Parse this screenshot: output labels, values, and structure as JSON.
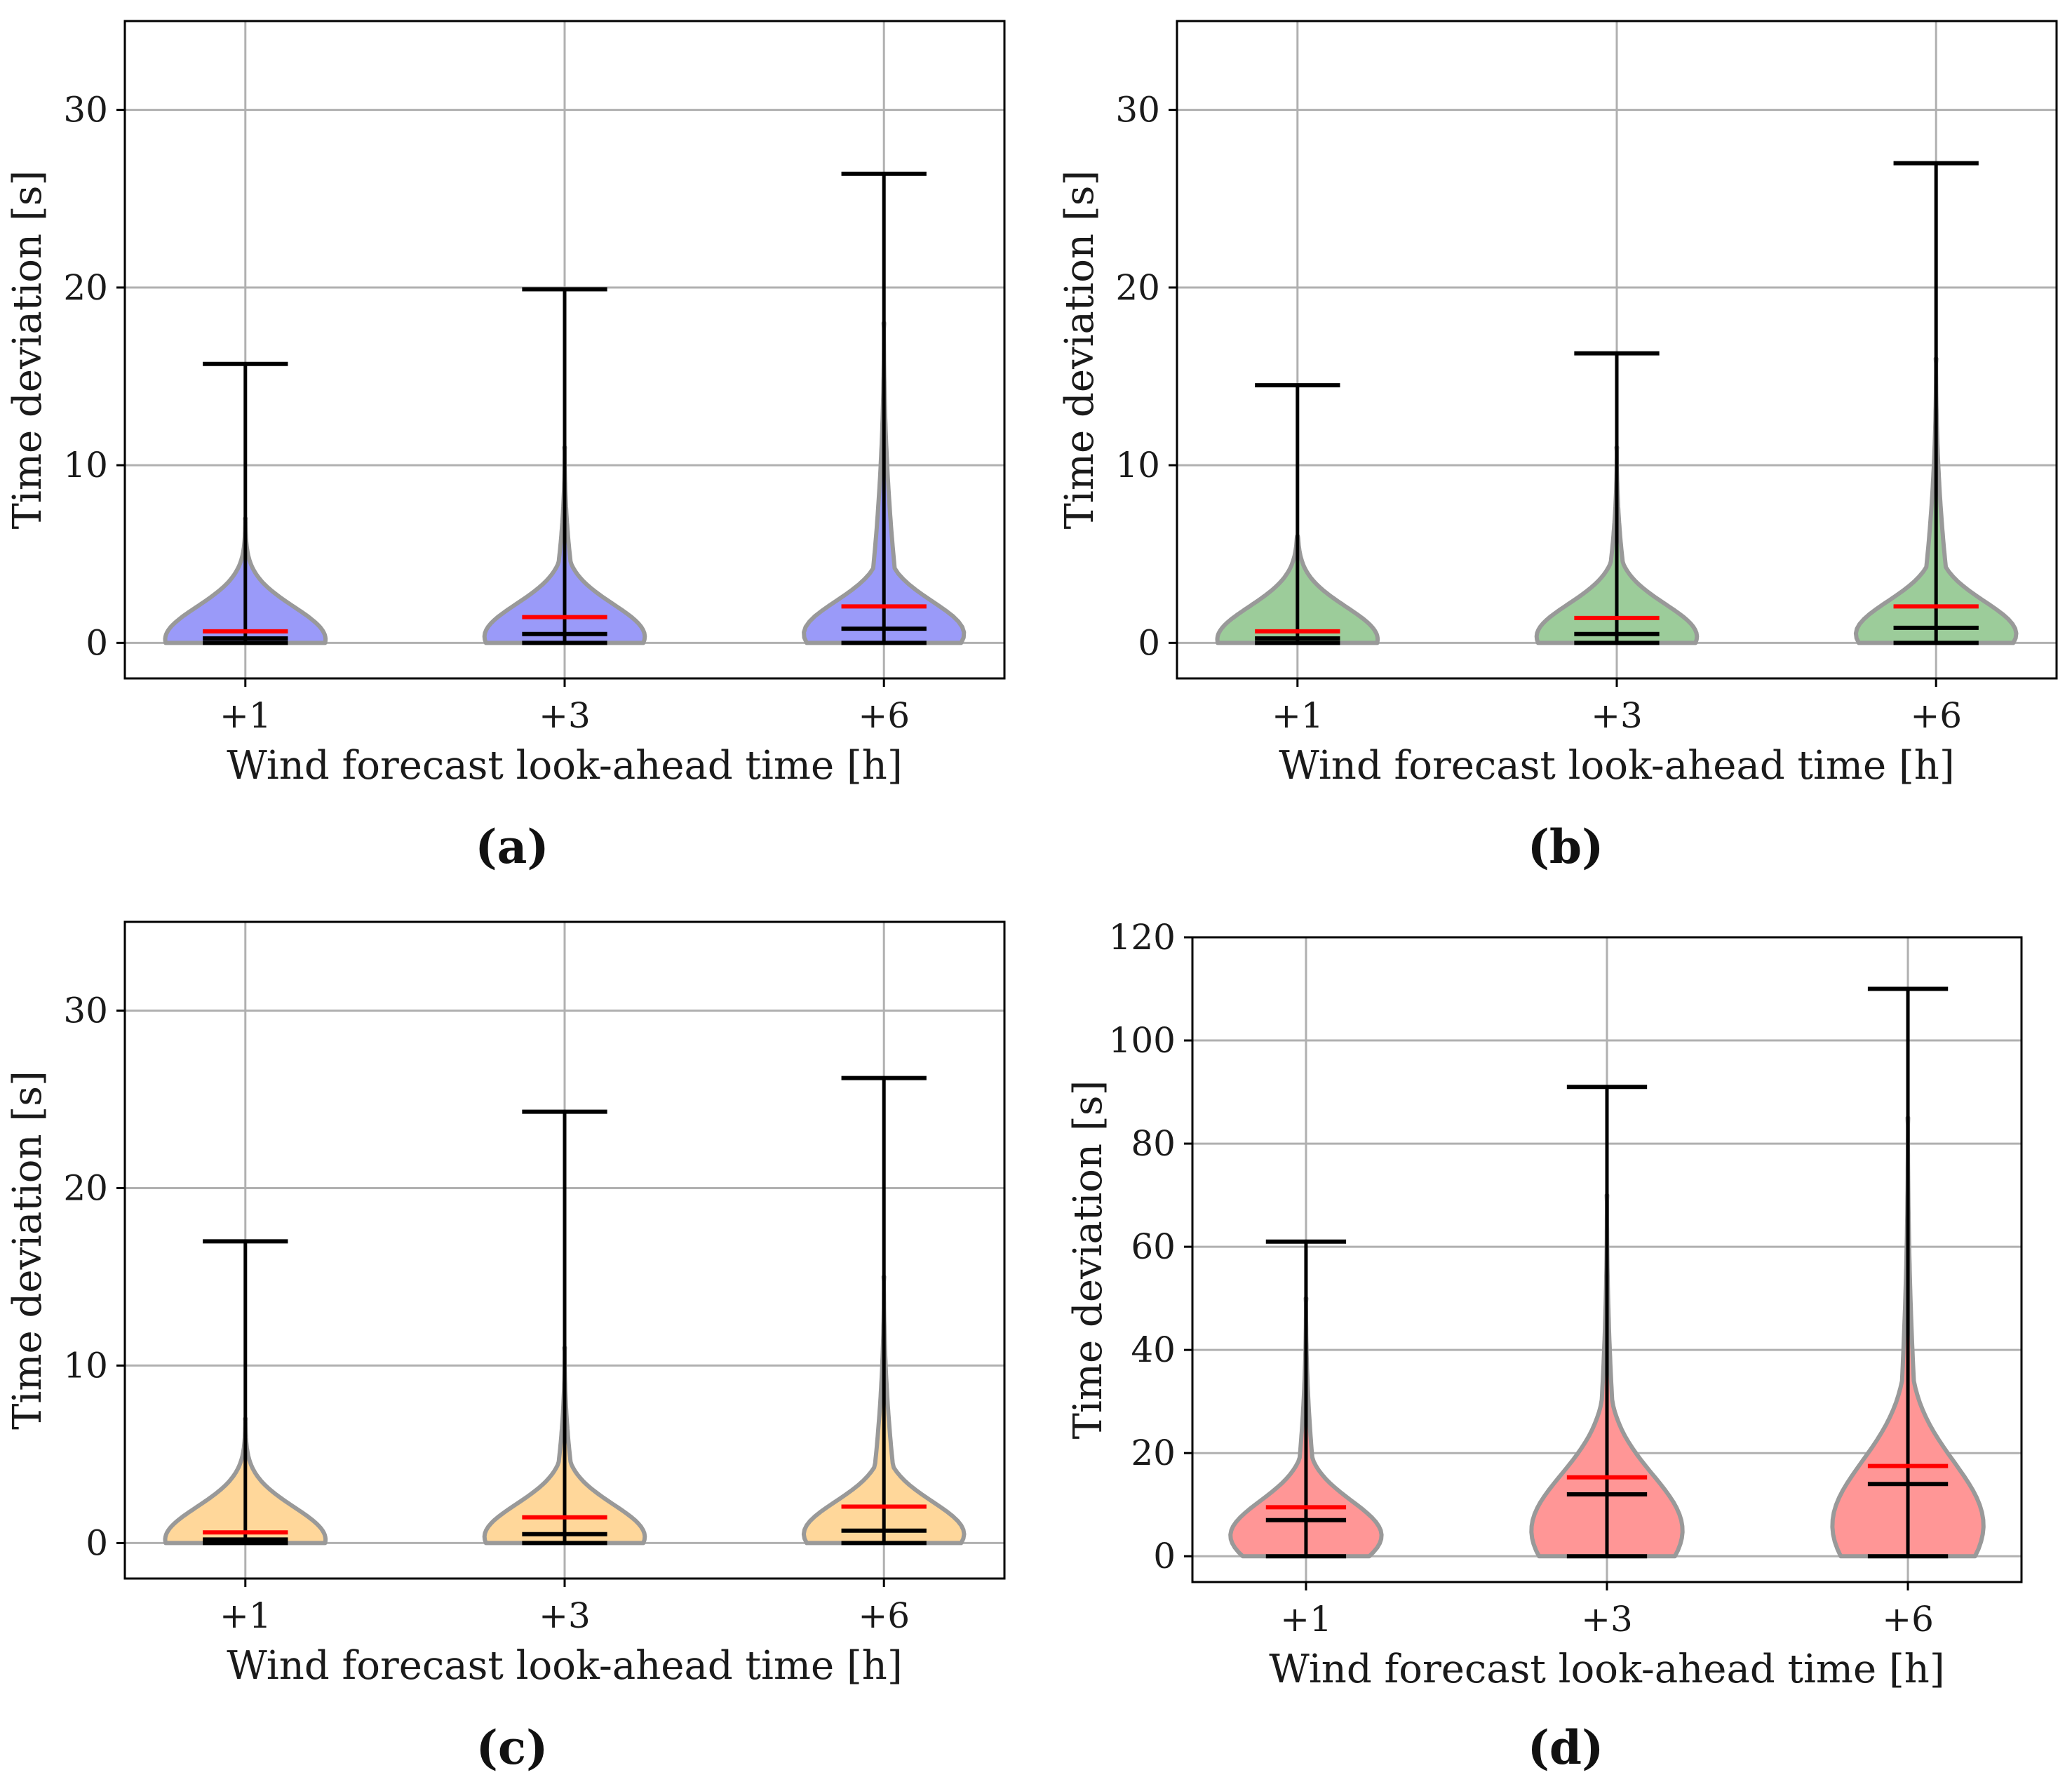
{
  "colors": {
    "grid": "#b0b0b0",
    "violin_outline": "#999999",
    "whisker": "#000000",
    "mean": "#ff0000",
    "median": "#000000",
    "fill_a": "#9a9af9",
    "fill_b": "#9ccc9a",
    "fill_c": "#ffd79a",
    "fill_d": "#ff9696"
  },
  "chart_data": [
    {
      "type": "violin",
      "panel_label": "(a)",
      "xlabel": "Wind forecast look-ahead time [h]",
      "ylabel": "Time deviation [s]",
      "ylim": [
        -2,
        35
      ],
      "yticks": [
        0,
        10,
        20,
        30
      ],
      "grid": true,
      "categories": [
        "+1",
        "+3",
        "+6"
      ],
      "fill_color": "#9a9af9",
      "series": [
        {
          "category": "+1",
          "min": 0,
          "max": 15.7,
          "mean": 0.65,
          "median": 0.25,
          "tail_top": 7,
          "body_mode": 0.2
        },
        {
          "category": "+3",
          "min": 0,
          "max": 19.9,
          "mean": 1.45,
          "median": 0.5,
          "tail_top": 11,
          "body_mode": 0.35
        },
        {
          "category": "+6",
          "min": 0,
          "max": 26.4,
          "mean": 2.05,
          "median": 0.8,
          "tail_top": 18,
          "body_mode": 0.5
        }
      ]
    },
    {
      "type": "violin",
      "panel_label": "(b)",
      "xlabel": "Wind forecast look-ahead time [h]",
      "ylabel": "Time deviation [s]",
      "ylim": [
        -2,
        35
      ],
      "yticks": [
        0,
        10,
        20,
        30
      ],
      "grid": true,
      "categories": [
        "+1",
        "+3",
        "+6"
      ],
      "fill_color": "#9ccc9a",
      "series": [
        {
          "category": "+1",
          "min": 0,
          "max": 14.5,
          "mean": 0.65,
          "median": 0.25,
          "tail_top": 6,
          "body_mode": 0.2
        },
        {
          "category": "+3",
          "min": 0,
          "max": 16.3,
          "mean": 1.4,
          "median": 0.5,
          "tail_top": 11,
          "body_mode": 0.35
        },
        {
          "category": "+6",
          "min": 0,
          "max": 27.0,
          "mean": 2.05,
          "median": 0.85,
          "tail_top": 16,
          "body_mode": 0.5
        }
      ]
    },
    {
      "type": "violin",
      "panel_label": "(c)",
      "xlabel": "Wind forecast look-ahead time [h]",
      "ylabel": "Time deviation [s]",
      "ylim": [
        -2,
        35
      ],
      "yticks": [
        0,
        10,
        20,
        30
      ],
      "grid": true,
      "categories": [
        "+1",
        "+3",
        "+6"
      ],
      "fill_color": "#ffd79a",
      "series": [
        {
          "category": "+1",
          "min": 0,
          "max": 17.0,
          "mean": 0.6,
          "median": 0.2,
          "tail_top": 7,
          "body_mode": 0.2
        },
        {
          "category": "+3",
          "min": 0,
          "max": 24.3,
          "mean": 1.45,
          "median": 0.5,
          "tail_top": 11,
          "body_mode": 0.35
        },
        {
          "category": "+6",
          "min": 0,
          "max": 26.2,
          "mean": 2.05,
          "median": 0.7,
          "tail_top": 15,
          "body_mode": 0.5
        }
      ]
    },
    {
      "type": "violin",
      "panel_label": "(d)",
      "xlabel": "Wind forecast look-ahead time [h]",
      "ylabel": "Time deviation [s]",
      "ylim": [
        -5,
        120
      ],
      "yticks": [
        0,
        20,
        40,
        60,
        80,
        100,
        120
      ],
      "grid": true,
      "categories": [
        "+1",
        "+3",
        "+6"
      ],
      "fill_color": "#ff9696",
      "series": [
        {
          "category": "+1",
          "min": 0,
          "max": 61,
          "mean": 9.5,
          "median": 7,
          "tail_top": 50,
          "body_mode": 4
        },
        {
          "category": "+3",
          "min": 0,
          "max": 91,
          "mean": 15.3,
          "median": 12,
          "tail_top": 70,
          "body_mode": 5
        },
        {
          "category": "+6",
          "min": 0,
          "max": 110,
          "mean": 17.5,
          "median": 14,
          "tail_top": 85,
          "body_mode": 6
        }
      ]
    }
  ]
}
